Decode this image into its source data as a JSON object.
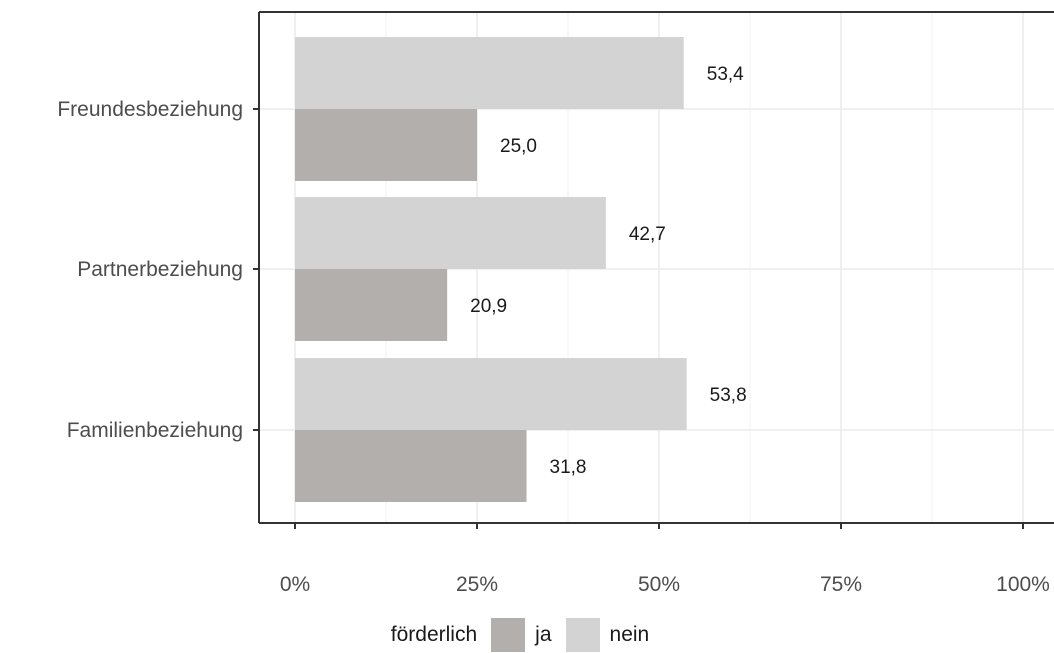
{
  "chart_data": {
    "type": "bar",
    "orientation": "horizontal",
    "categories": [
      "Freundesbeziehung",
      "Partnerbeziehung",
      "Familienbeziehung"
    ],
    "series": [
      {
        "name": "ja",
        "values": [
          25.0,
          20.9,
          31.8
        ],
        "labels": [
          "25,0",
          "20,9",
          "31,8"
        ],
        "color": "#b3afac"
      },
      {
        "name": "nein",
        "values": [
          53.4,
          42.7,
          53.8
        ],
        "labels": [
          "53,4",
          "42,7",
          "53,8"
        ],
        "color": "#d3d3d3"
      }
    ],
    "xlim": [
      0,
      100
    ],
    "xticks": [
      "0%",
      "25%",
      "50%",
      "75%",
      "100%"
    ],
    "xlabel": "",
    "ylabel": "",
    "title": "",
    "grid": true,
    "legend": {
      "title": "förderlich",
      "position": "bottom"
    }
  }
}
